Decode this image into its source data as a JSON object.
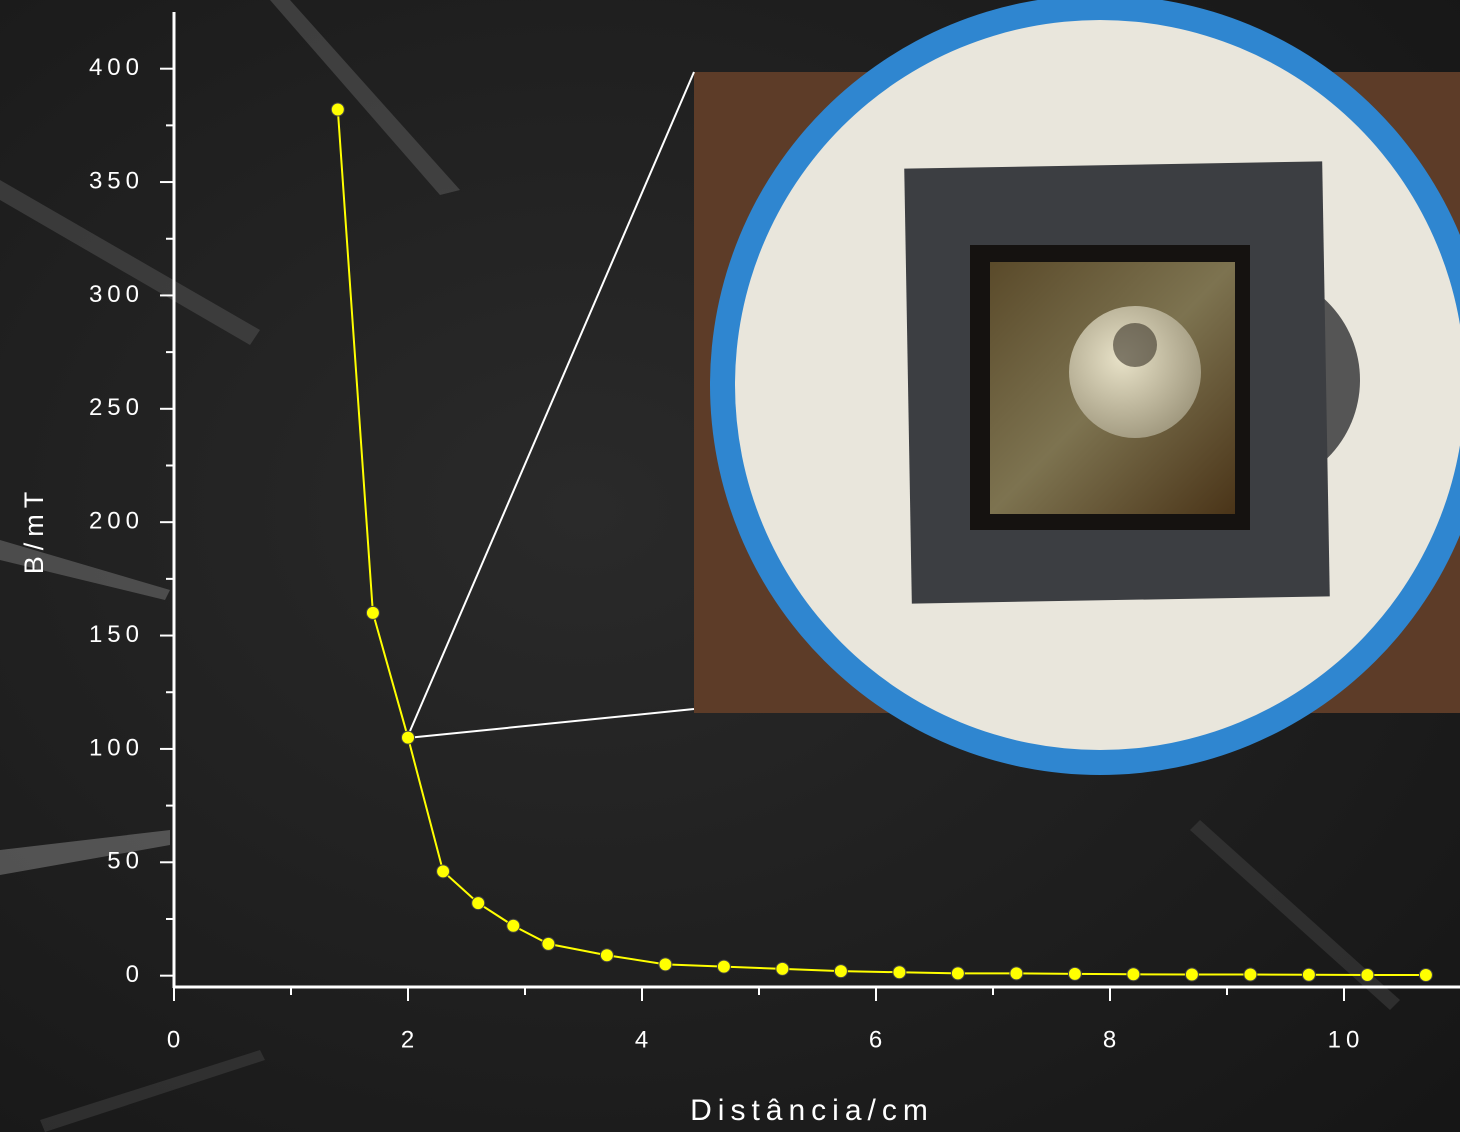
{
  "chart_data": {
    "type": "line",
    "x_label": "Distância/cm",
    "y_label": "B/mT",
    "x": [
      1.4,
      1.7,
      2.0,
      2.3,
      2.6,
      2.9,
      3.2,
      3.7,
      4.2,
      4.7,
      5.2,
      5.7,
      6.2,
      6.7,
      7.2,
      7.7,
      8.2,
      8.7,
      9.2,
      9.7,
      10.2,
      10.7
    ],
    "series": [
      {
        "color": "#ffff00",
        "values": [
          382,
          160,
          105,
          46,
          32,
          22,
          14,
          9,
          5,
          4,
          3,
          2,
          1.5,
          1,
          1,
          0.8,
          0.6,
          0.5,
          0.5,
          0.4,
          0.3,
          0.3
        ]
      }
    ],
    "xlim": [
      0,
      11
    ],
    "xticks": [
      0,
      2,
      4,
      6,
      8,
      10
    ],
    "ylim": [
      -5,
      425
    ],
    "yticks": [
      0,
      50,
      100,
      150,
      200,
      250,
      300,
      350,
      400
    ],
    "grid": false
  }
}
